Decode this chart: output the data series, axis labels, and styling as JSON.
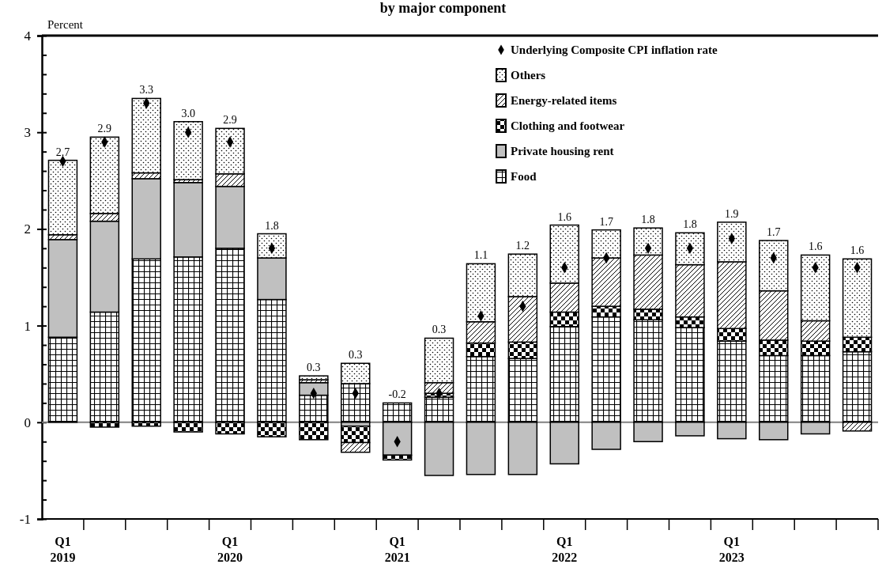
{
  "chart_data": {
    "type": "bar",
    "title": "by major component",
    "ylabel": "Percent",
    "categories": [
      "Q1 2019",
      null,
      null,
      null,
      "Q1 2020",
      null,
      null,
      null,
      "Q1 2021",
      null,
      null,
      null,
      "Q1 2022",
      null,
      null,
      null,
      "Q1 2023",
      null,
      null,
      null
    ],
    "stacked": true,
    "series": [
      {
        "name": "Food",
        "color": "#000000",
        "values": [
          0.88,
          1.14,
          1.69,
          1.71,
          1.8,
          1.27,
          0.28,
          0.4,
          0.2,
          0.26,
          0.68,
          0.66,
          0.99,
          1.09,
          1.06,
          0.98,
          0.84,
          0.69,
          0.69,
          0.73
        ]
      },
      {
        "name": "Private housing rent",
        "color": "#c0c0c0",
        "values": [
          1.01,
          0.94,
          0.83,
          0.77,
          0.64,
          0.43,
          0.13,
          -0.04,
          -0.34,
          -0.55,
          -0.54,
          -0.54,
          -0.43,
          -0.28,
          -0.2,
          -0.14,
          -0.17,
          -0.18,
          -0.12,
          null
        ]
      },
      {
        "name": "Clothing and footwear",
        "color": "#000000",
        "values": [
          null,
          -0.05,
          -0.04,
          -0.1,
          -0.12,
          -0.15,
          -0.18,
          -0.17,
          -0.05,
          0.04,
          0.14,
          0.17,
          0.15,
          0.11,
          0.11,
          0.11,
          0.13,
          0.16,
          0.15,
          0.15
        ]
      },
      {
        "name": "Energy-related items",
        "color": "#000000",
        "values": [
          0.05,
          0.08,
          0.06,
          0.03,
          0.13,
          null,
          0.03,
          -0.1,
          null,
          0.11,
          0.22,
          0.47,
          0.3,
          0.5,
          0.56,
          0.54,
          0.69,
          0.51,
          0.21,
          -0.09
        ]
      },
      {
        "name": "Others",
        "color": "#000000",
        "values": [
          0.77,
          0.79,
          0.77,
          0.6,
          0.47,
          0.25,
          0.04,
          0.21,
          null,
          0.46,
          0.6,
          0.44,
          0.6,
          0.29,
          0.28,
          0.33,
          0.41,
          0.52,
          0.68,
          0.81
        ]
      },
      {
        "name": "Underlying Composite CPI inflation rate",
        "type": "scatter",
        "marker": "diamond",
        "color": "#000000",
        "values": [
          2.7,
          2.9,
          3.3,
          3.0,
          2.9,
          1.8,
          0.3,
          0.3,
          -0.2,
          0.3,
          1.1,
          1.2,
          1.6,
          1.7,
          1.8,
          1.8,
          1.9,
          1.7,
          1.6,
          1.6
        ]
      }
    ],
    "totals": [
      "2.7",
      "2.9",
      "3.3",
      "3.0",
      "2.9",
      "1.8",
      "0.3",
      "0.3",
      "-0.2",
      "0.3",
      "1.1",
      "1.2",
      "1.6",
      "1.7",
      "1.8",
      "1.8",
      "1.9",
      "1.7",
      "1.6",
      "1.6"
    ],
    "ylim": [
      -1,
      4
    ],
    "yticks": [
      -1,
      {
        "value": -0.8,
        "label": null
      },
      {
        "value": -0.6,
        "label": null
      },
      {
        "value": -0.4,
        "label": null
      },
      {
        "value": -0.2,
        "label": null
      },
      0,
      {
        "value": 0.2,
        "label": null
      },
      {
        "value": 0.4,
        "label": null
      },
      {
        "value": 0.6,
        "label": null
      },
      {
        "value": 0.8,
        "label": null
      },
      1,
      {
        "value": 1.2,
        "label": null
      },
      {
        "value": 1.4,
        "label": null
      },
      {
        "value": 1.6,
        "label": null
      },
      {
        "value": 1.8,
        "label": null
      },
      2,
      {
        "value": 2.2,
        "label": null
      },
      {
        "value": 2.4,
        "label": null
      },
      {
        "value": 2.6,
        "label": null
      },
      {
        "value": 2.8,
        "label": null
      },
      3,
      {
        "value": 3.2,
        "label": null
      },
      {
        "value": 3.4,
        "label": null
      },
      {
        "value": 3.6,
        "label": null
      },
      {
        "value": 3.8,
        "label": null
      },
      4
    ],
    "ref_lines": [
      {
        "axis": "y",
        "value": 0,
        "color": "#808080"
      }
    ],
    "legend": "top right"
  }
}
